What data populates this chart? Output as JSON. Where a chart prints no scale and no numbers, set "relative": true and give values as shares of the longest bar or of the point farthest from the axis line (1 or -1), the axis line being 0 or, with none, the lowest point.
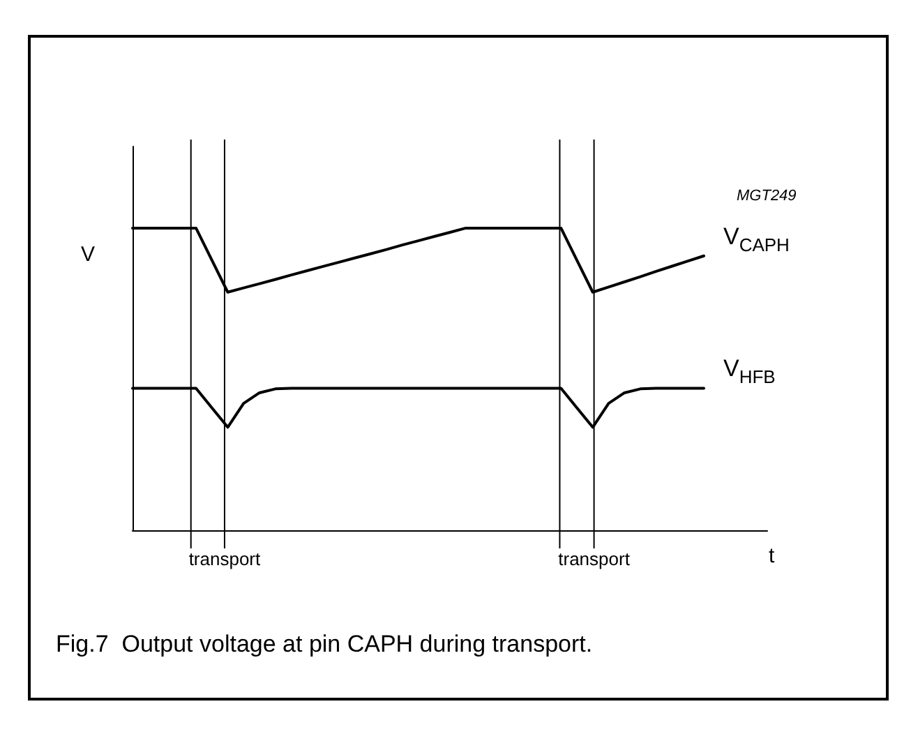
{
  "chart_data": {
    "type": "line",
    "relative": true,
    "title": "Fig.7  Output voltage at pin CAPH during transport.",
    "xlabel": "t",
    "ylabel": "V",
    "annotations": [
      "MGT249",
      "transport",
      "transport"
    ],
    "categories": [
      null,
      null,
      null,
      null,
      null,
      null,
      null,
      null,
      null,
      null,
      null,
      null,
      null,
      null,
      null,
      null,
      null,
      null,
      null,
      null,
      null,
      null,
      null,
      null,
      null,
      null,
      null,
      null,
      null,
      null,
      null,
      null,
      null,
      null,
      null,
      null,
      null,
      null,
      null,
      null,
      null
    ],
    "grid": false,
    "legend": false,
    "marker": "none",
    "line_style": "solid",
    "series": [
      {
        "name": "V$_{CAPH}$",
        "color": "#000000",
        "values": [
          1,
          1,
          1,
          1,
          1,
          0.894,
          0.788,
          0.802,
          0.816,
          0.83,
          0.845,
          0.859,
          0.873,
          0.887,
          0.901,
          0.915,
          0.929,
          0.944,
          0.958,
          0.972,
          0.986,
          1,
          1,
          1,
          1,
          1,
          1,
          1,
          0.894,
          0.788,
          0.805,
          0.822,
          0.839,
          0.857,
          0.874,
          0.891,
          0.908,
          null,
          null,
          null,
          null
        ]
      },
      {
        "name": "V$_{HFB}$",
        "color": "#000000",
        "values": [
          0.47,
          0.47,
          0.47,
          0.47,
          0.47,
          0.405,
          0.341,
          0.42,
          0.455,
          0.468,
          0.47,
          0.47,
          0.47,
          0.47,
          0.47,
          0.47,
          0.47,
          0.47,
          0.47,
          0.47,
          0.47,
          0.47,
          0.47,
          0.47,
          0.47,
          0.47,
          0.47,
          0.47,
          0.405,
          0.341,
          0.42,
          0.455,
          0.468,
          0.47,
          0.47,
          0.47,
          0.47,
          null,
          null,
          null,
          null
        ]
      }
    ]
  }
}
